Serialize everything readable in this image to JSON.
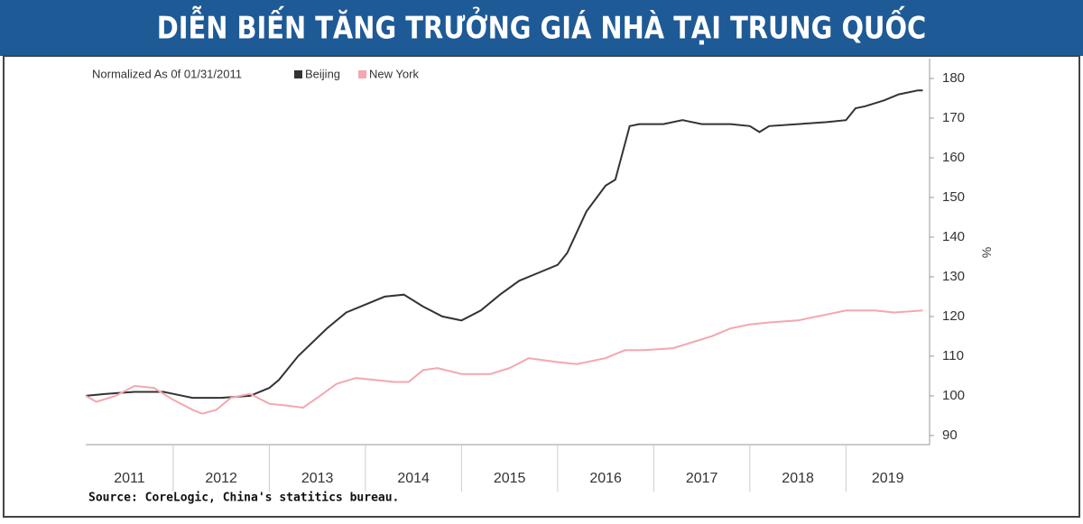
{
  "chart_data": {
    "type": "line",
    "title": "DIỄN BIẾN TĂNG TRƯỞNG GIÁ NHÀ TẠI TRUNG QUỐC",
    "subtitle": "Normalized As 0f 01/31/2011",
    "y_label": "%",
    "source": "Source: CoreLogic, China's statitics bureau.",
    "xlim": [
      2011.09,
      2019.87
    ],
    "xticks": [
      2011,
      2012,
      2013,
      2014,
      2015,
      2016,
      2017,
      2018,
      2019
    ],
    "ylim": [
      87.7,
      185
    ],
    "yticks": [
      90,
      100,
      110,
      120,
      130,
      140,
      150,
      160,
      170,
      180
    ],
    "series": [
      {
        "name": "Beijing",
        "color": "#333333",
        "x": [
          2011.09,
          2011.3,
          2011.6,
          2011.9,
          2012.0,
          2012.2,
          2012.5,
          2012.8,
          2013.0,
          2013.1,
          2013.3,
          2013.6,
          2013.8,
          2014.0,
          2014.2,
          2014.4,
          2014.6,
          2014.8,
          2015.0,
          2015.2,
          2015.4,
          2015.6,
          2015.8,
          2016.0,
          2016.1,
          2016.3,
          2016.5,
          2016.6,
          2016.75,
          2016.85,
          2017.1,
          2017.3,
          2017.5,
          2017.8,
          2018.0,
          2018.1,
          2018.2,
          2018.5,
          2018.8,
          2019.0,
          2019.1,
          2019.2,
          2019.4,
          2019.55,
          2019.75,
          2019.8
        ],
        "values": [
          100,
          100.5,
          101,
          101,
          100.5,
          99.5,
          99.5,
          100,
          102,
          104,
          110,
          117,
          121,
          123,
          125,
          125.5,
          122.5,
          120,
          119,
          121.5,
          125.5,
          129,
          131,
          133,
          136,
          146.5,
          153,
          154.5,
          168,
          168.5,
          168.5,
          169.5,
          168.5,
          168.5,
          168,
          166.5,
          168,
          168.5,
          169,
          169.5,
          172.5,
          173,
          174.5,
          176,
          177,
          177
        ]
      },
      {
        "name": "New York",
        "color": "#f4a7ae",
        "x": [
          2011.09,
          2011.2,
          2011.4,
          2011.6,
          2011.8,
          2012.0,
          2012.2,
          2012.3,
          2012.45,
          2012.6,
          2012.8,
          2013.0,
          2013.2,
          2013.35,
          2013.5,
          2013.7,
          2013.9,
          2014.1,
          2014.3,
          2014.45,
          2014.6,
          2014.75,
          2015.0,
          2015.3,
          2015.5,
          2015.7,
          2016.0,
          2016.2,
          2016.5,
          2016.7,
          2016.9,
          2017.2,
          2017.4,
          2017.6,
          2017.8,
          2018.0,
          2018.2,
          2018.5,
          2018.8,
          2019.0,
          2019.3,
          2019.5,
          2019.8
        ],
        "values": [
          100,
          98.5,
          100,
          102.5,
          102,
          99,
          96.5,
          95.5,
          96.5,
          99.5,
          100.5,
          98,
          97.5,
          97,
          99.5,
          103,
          104.5,
          104,
          103.5,
          103.5,
          106.5,
          107,
          105.5,
          105.5,
          107,
          109.5,
          108.5,
          108,
          109.5,
          111.5,
          111.5,
          112,
          113.5,
          115,
          117,
          118,
          118.5,
          119,
          120.5,
          121.5,
          121.5,
          121,
          121.5
        ]
      }
    ]
  }
}
